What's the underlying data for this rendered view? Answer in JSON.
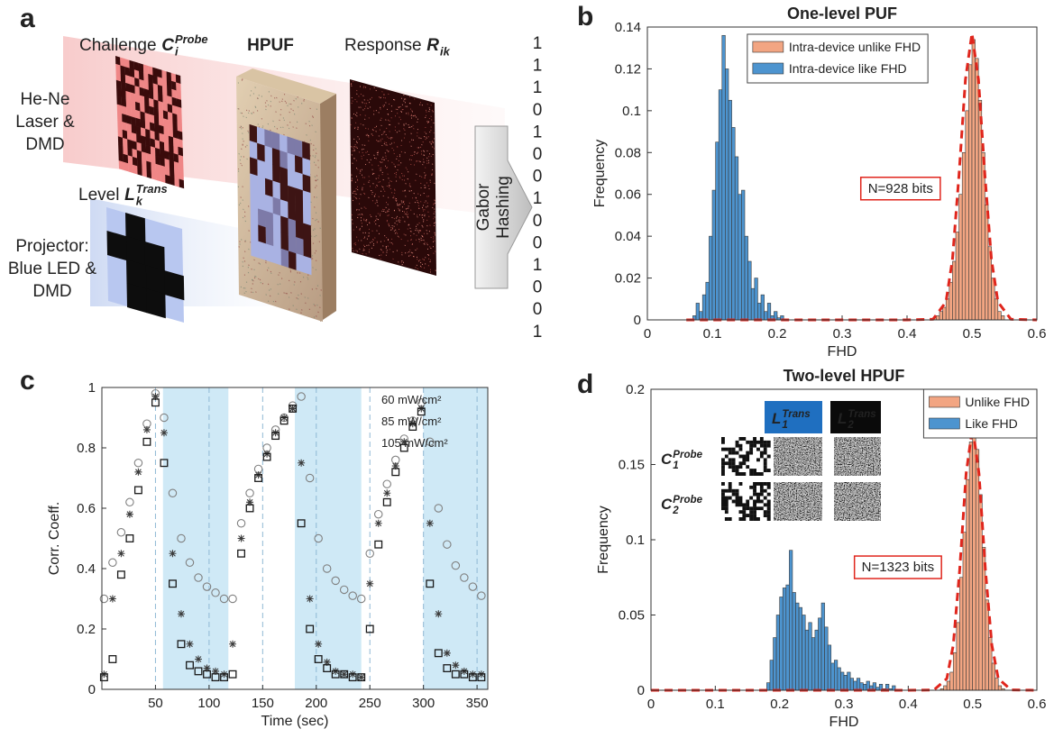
{
  "panel_labels": [
    "a",
    "b",
    "c",
    "d"
  ],
  "diagram": {
    "challenge": {
      "text": "Challenge",
      "symbol": "C",
      "sub": "i",
      "sup": "Probe"
    },
    "hpuf": "HPUF",
    "response": {
      "text": "Response",
      "symbol": "R",
      "sub": "ik"
    },
    "laser": [
      "He-Ne",
      "Laser &",
      "DMD"
    ],
    "level": {
      "text": "Level",
      "symbol": "L",
      "sub": "k",
      "sup": "Trans"
    },
    "projector": [
      "Projector:",
      "Blue LED &",
      "DMD"
    ],
    "hashing": [
      "Gabor",
      "Hashing"
    ],
    "bits": [
      1,
      1,
      1,
      0,
      1,
      0,
      0,
      1,
      0,
      0,
      1,
      0,
      0,
      1
    ]
  },
  "chart_data": [
    {
      "type": "histogram",
      "title": "One-level PUF",
      "x_label": "FHD",
      "y_label": "Frequency",
      "xlim": [
        0,
        0.6
      ],
      "xticks": [
        0,
        0.1,
        0.2,
        0.3,
        0.4,
        0.5,
        0.6
      ],
      "ylim": [
        0,
        0.14
      ],
      "yticks": [
        0,
        0.02,
        0.04,
        0.06,
        0.08,
        0.1,
        0.12,
        0.14
      ],
      "legend": "upper center",
      "series": [
        {
          "name": "Intra-device unlike FHD",
          "color": "#f2a582",
          "bins": [
            0.44,
            0.445,
            0.45,
            0.455,
            0.46,
            0.465,
            0.47,
            0.475,
            0.48,
            0.485,
            0.49,
            0.495,
            0.5,
            0.505,
            0.51,
            0.515,
            0.52,
            0.525,
            0.53,
            0.535,
            0.54,
            0.545,
            0.55
          ],
          "values": [
            0.001,
            0.002,
            0.004,
            0.006,
            0.01,
            0.018,
            0.028,
            0.042,
            0.06,
            0.08,
            0.1,
            0.122,
            0.134,
            0.125,
            0.105,
            0.08,
            0.055,
            0.035,
            0.02,
            0.01,
            0.004,
            0.002
          ]
        },
        {
          "name": "Intra-device like FHD",
          "color": "#4d94cf",
          "bins": [
            0.07,
            0.075,
            0.08,
            0.085,
            0.09,
            0.095,
            0.1,
            0.105,
            0.11,
            0.115,
            0.12,
            0.125,
            0.13,
            0.135,
            0.14,
            0.145,
            0.15,
            0.155,
            0.16,
            0.165,
            0.17,
            0.175,
            0.18,
            0.185,
            0.19,
            0.195,
            0.2,
            0.205,
            0.21
          ],
          "values": [
            0.002,
            0.008,
            0.004,
            0.012,
            0.018,
            0.04,
            0.062,
            0.085,
            0.11,
            0.136,
            0.12,
            0.105,
            0.092,
            0.078,
            0.06,
            0.062,
            0.04,
            0.028,
            0.015,
            0.02,
            0.008,
            0.012,
            0.004,
            0.008,
            0.002,
            0.004,
            0.001,
            0.002
          ]
        }
      ],
      "fit": {
        "color": "#e0261d",
        "x": [
          0.06,
          0.4,
          0.44,
          0.46,
          0.47,
          0.48,
          0.49,
          0.5,
          0.51,
          0.52,
          0.53,
          0.54,
          0.56,
          0.6
        ],
        "values": [
          0,
          0,
          0.0003,
          0.0086,
          0.029,
          0.069,
          0.115,
          0.137,
          0.115,
          0.069,
          0.029,
          0.0086,
          0.0003,
          0
        ]
      },
      "annotation": "N=928 bits"
    },
    {
      "type": "scatter",
      "x_label": "Time (sec)",
      "y_label": "Corr. Coeff.",
      "xlim": [
        0,
        360
      ],
      "xticks": [
        50,
        100,
        150,
        200,
        250,
        300,
        350
      ],
      "ylim": [
        0,
        1
      ],
      "yticks": [
        0,
        0.2,
        0.4,
        0.6,
        0.8,
        1
      ],
      "x_grid": true,
      "legend": "upper right",
      "shaded_regions": [
        [
          57,
          118
        ],
        [
          180,
          242
        ],
        [
          300,
          360
        ]
      ],
      "x": [
        2,
        10,
        18,
        26,
        34,
        42,
        50,
        58,
        66,
        74,
        82,
        90,
        98,
        106,
        114,
        122,
        130,
        138,
        146,
        154,
        162,
        170,
        178,
        186,
        194,
        202,
        210,
        218,
        226,
        234,
        242,
        250,
        258,
        266,
        274,
        282,
        290,
        298,
        306,
        314,
        322,
        330,
        338,
        346,
        354
      ],
      "series": [
        {
          "name": "60 mW/cm²",
          "color": "#808080",
          "marker": "circle",
          "values": [
            0.3,
            0.42,
            0.52,
            0.62,
            0.75,
            0.88,
            0.98,
            0.9,
            0.65,
            0.5,
            0.42,
            0.37,
            0.34,
            0.32,
            0.3,
            0.3,
            0.55,
            0.65,
            0.73,
            0.8,
            0.86,
            0.9,
            0.94,
            0.97,
            0.7,
            0.5,
            0.4,
            0.36,
            0.33,
            0.31,
            0.3,
            0.45,
            0.58,
            0.68,
            0.76,
            0.83,
            0.89,
            0.95,
            0.82,
            0.6,
            0.48,
            0.41,
            0.37,
            0.34,
            0.31
          ]
        },
        {
          "name": "85 mW/cm²",
          "color": "#3c3c3c",
          "marker": "asterisk",
          "values": [
            0.05,
            0.3,
            0.45,
            0.58,
            0.72,
            0.86,
            0.97,
            0.85,
            0.45,
            0.25,
            0.15,
            0.1,
            0.07,
            0.06,
            0.05,
            0.15,
            0.5,
            0.62,
            0.71,
            0.78,
            0.85,
            0.9,
            0.93,
            0.75,
            0.3,
            0.15,
            0.09,
            0.06,
            0.05,
            0.05,
            0.04,
            0.35,
            0.55,
            0.65,
            0.74,
            0.82,
            0.88,
            0.93,
            0.55,
            0.25,
            0.12,
            0.08,
            0.06,
            0.05,
            0.05
          ]
        },
        {
          "name": "105 mW/cm²",
          "color": "#1a1a1a",
          "marker": "square",
          "values": [
            0.04,
            0.1,
            0.38,
            0.5,
            0.66,
            0.82,
            0.95,
            0.75,
            0.35,
            0.15,
            0.08,
            0.06,
            0.05,
            0.04,
            0.04,
            0.05,
            0.45,
            0.6,
            0.7,
            0.77,
            0.84,
            0.89,
            0.93,
            0.55,
            0.2,
            0.1,
            0.07,
            0.05,
            0.05,
            0.04,
            0.04,
            0.2,
            0.48,
            0.62,
            0.72,
            0.8,
            0.87,
            0.92,
            0.35,
            0.12,
            0.07,
            0.05,
            0.05,
            0.04,
            0.04
          ]
        }
      ]
    },
    {
      "type": "histogram",
      "title": "Two-level HPUF",
      "x_label": "FHD",
      "y_label": "Frequency",
      "xlim": [
        0,
        0.6
      ],
      "xticks": [
        0,
        0.1,
        0.2,
        0.3,
        0.4,
        0.5,
        0.6
      ],
      "ylim": [
        0,
        0.2
      ],
      "yticks": [
        0,
        0.05,
        0.1,
        0.15,
        0.2
      ],
      "legend": "upper right",
      "series": [
        {
          "name": "Unlike FHD",
          "color": "#f2a582",
          "bins": [
            0.45,
            0.455,
            0.46,
            0.465,
            0.47,
            0.475,
            0.48,
            0.485,
            0.49,
            0.495,
            0.5,
            0.505,
            0.51,
            0.515,
            0.52,
            0.525,
            0.53,
            0.535,
            0.54,
            0.545,
            0.55
          ],
          "values": [
            0.001,
            0.003,
            0.006,
            0.012,
            0.025,
            0.045,
            0.075,
            0.105,
            0.14,
            0.165,
            0.175,
            0.16,
            0.13,
            0.095,
            0.06,
            0.035,
            0.018,
            0.008,
            0.003,
            0.001
          ]
        },
        {
          "name": "Like FHD",
          "color": "#4d94cf",
          "bins": [
            0.18,
            0.185,
            0.19,
            0.195,
            0.2,
            0.205,
            0.21,
            0.215,
            0.22,
            0.225,
            0.23,
            0.235,
            0.24,
            0.245,
            0.25,
            0.255,
            0.26,
            0.265,
            0.27,
            0.275,
            0.28,
            0.285,
            0.29,
            0.295,
            0.3,
            0.305,
            0.31,
            0.315,
            0.32,
            0.325,
            0.33,
            0.335,
            0.34,
            0.345,
            0.35,
            0.355,
            0.36,
            0.365,
            0.37,
            0.375,
            0.38
          ],
          "values": [
            0.005,
            0.02,
            0.035,
            0.05,
            0.062,
            0.068,
            0.07,
            0.093,
            0.065,
            0.058,
            0.055,
            0.05,
            0.04,
            0.045,
            0.035,
            0.04,
            0.048,
            0.058,
            0.042,
            0.03,
            0.018,
            0.02,
            0.015,
            0.012,
            0.01,
            0.012,
            0.008,
            0.006,
            0.008,
            0.005,
            0.004,
            0.006,
            0.003,
            0.005,
            0.002,
            0.004,
            0.001,
            0.004,
            0.001,
            0.003
          ]
        }
      ],
      "fit": {
        "color": "#e0261d",
        "x": [
          0,
          0.4,
          0.44,
          0.46,
          0.47,
          0.48,
          0.49,
          0.5,
          0.51,
          0.52,
          0.53,
          0.54,
          0.56,
          0.6
        ],
        "values": [
          0,
          0,
          0.0002,
          0.0077,
          0.03,
          0.08,
          0.144,
          0.175,
          0.144,
          0.08,
          0.03,
          0.0077,
          0.0002,
          0
        ]
      },
      "annotation": "N=1323 bits",
      "inset": {
        "columns": [
          {
            "symbol": "L",
            "sub": "1",
            "sup": "Trans"
          },
          {
            "symbol": "L",
            "sub": "2",
            "sup": "Trans"
          }
        ],
        "rows": [
          {
            "symbol": "C",
            "sub": "1",
            "sup": "Probe"
          },
          {
            "symbol": "C",
            "sub": "2",
            "sup": "Probe"
          }
        ]
      }
    }
  ]
}
